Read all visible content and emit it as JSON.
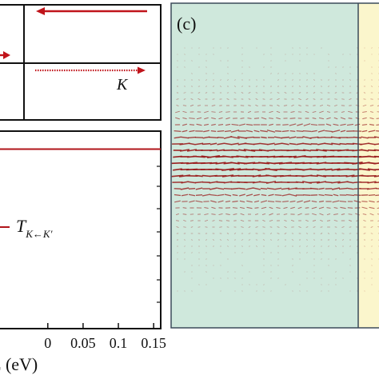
{
  "figure": {
    "panel_c_label": "(c)",
    "diagram_top": {
      "k_label": "K"
    },
    "plot_bottom": {
      "legend_T": "T",
      "legend_subscript": "K←K′",
      "x_axis_label": "E (eV)"
    },
    "colors": {
      "arrow_red": "#c0141b",
      "line_red": "#b0141a",
      "panel_green": "#cfe8dc",
      "panel_yellow": "#fbf6cc",
      "field_dark_red": "#9b2020",
      "frame": "#111111"
    }
  },
  "chart_data": {
    "type": "line",
    "xlabel": "E (eV)",
    "x_ticks": [
      "0",
      "0.05",
      "0.1",
      "0.15"
    ],
    "xlim": [
      -0.07,
      0.16
    ],
    "series": [
      {
        "name": "T_{K←K′}",
        "x": [
          -0.07,
          0.0,
          0.05,
          0.1,
          0.15,
          0.16
        ],
        "values": [
          1.0,
          1.0,
          1.0,
          1.0,
          1.0,
          1.0
        ]
      }
    ]
  }
}
